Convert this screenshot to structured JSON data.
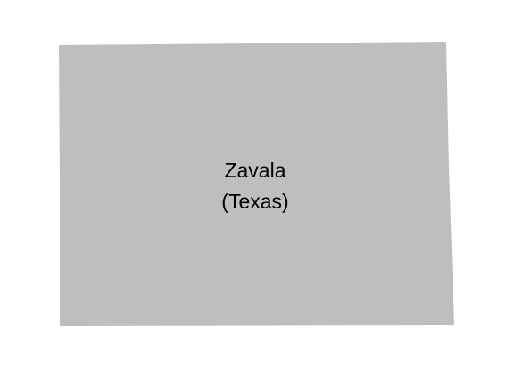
{
  "map": {
    "region_name": "Zavala",
    "region_state": "(Texas)",
    "colors": {
      "background": "#ffffff",
      "region_fill": "#bebebe"
    }
  }
}
